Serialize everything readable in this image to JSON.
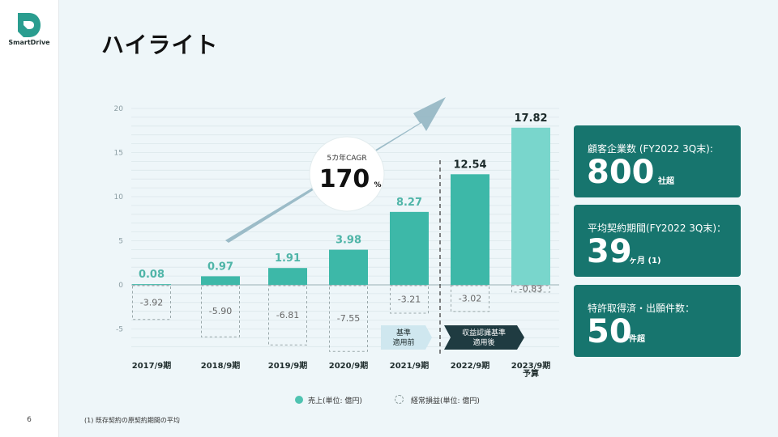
{
  "brand": {
    "name": "SmartDrive"
  },
  "page_number": "6",
  "title": "ハイライト",
  "chart_data": {
    "type": "bar",
    "categories": [
      "2017/9期",
      "2018/9期",
      "2019/9期",
      "2020/9期",
      "2021/9期",
      "2022/9期",
      "2023/9期\n予算"
    ],
    "series": [
      {
        "name": "売上(単位: 億円)",
        "values": [
          0.08,
          0.97,
          1.91,
          3.98,
          8.27,
          12.54,
          17.82
        ]
      },
      {
        "name": "経常損益(単位: 億円)",
        "values": [
          -3.92,
          -5.9,
          -6.81,
          -7.55,
          -3.21,
          -3.02,
          -0.83
        ]
      }
    ],
    "value_labels": {
      "revenue": [
        "0.08",
        "0.97",
        "1.91",
        "3.98",
        "8.27",
        "12.54",
        "17.82"
      ],
      "profit": [
        "-3.92",
        "-5.90",
        "-6.81",
        "-7.55",
        "-3.21",
        "-3.02",
        "-0.83"
      ]
    },
    "y_ticks": [
      "20",
      "15",
      "10",
      "5",
      "0",
      "-5"
    ],
    "ylim": [
      -7.9,
      21
    ],
    "grid": true,
    "cagr": {
      "label": "5カ年CAGR",
      "value": "170",
      "unit": "%"
    },
    "badges": {
      "before": "基準\n適用前",
      "after": "収益認識基準\n適用後"
    },
    "colors": {
      "bar_light": "#5dc6b5",
      "bar_mid": "#3db8a8",
      "bar_last": "#79d6cc",
      "arrow": "#8db1bf",
      "dark_badge": "#1f3b41",
      "light_badge": "#cfe7ef"
    }
  },
  "stats": [
    {
      "label": "顧客企業数 (FY2022 3Q末):",
      "value": "800",
      "unit": "社超"
    },
    {
      "label": "平均契約期間(FY2022 3Q末)：",
      "value": "39",
      "unit": "ヶ月 (1)"
    },
    {
      "label": "特許取得済・出願件数：",
      "value": "50",
      "unit": "件超"
    }
  ],
  "legend": [
    {
      "label": "売上(単位: 億円)"
    },
    {
      "label": "経常損益(単位: 億円)"
    }
  ],
  "footnote": "(1) 既存契約の原契約期間の平均",
  "card_color": "#17756e"
}
